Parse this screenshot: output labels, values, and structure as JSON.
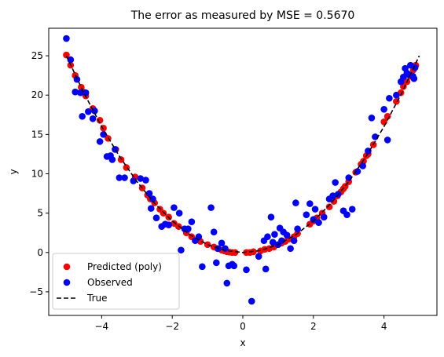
{
  "chart_data": {
    "type": "scatter",
    "title": "The error as measured by MSE = 0.5670",
    "xlabel": "x",
    "ylabel": "y",
    "xlim": [
      -5.5,
      5.5
    ],
    "ylim": [
      -8,
      28.5
    ],
    "xticks": [
      -4,
      -2,
      0,
      2,
      4
    ],
    "yticks": [
      -5,
      0,
      5,
      10,
      15,
      20,
      25
    ],
    "grid": false,
    "legend_position": "lower-left",
    "series": [
      {
        "name": "Predicted (poly)",
        "kind": "scatter",
        "color": "#ff0000",
        "x": [
          -5.0,
          -4.88,
          -4.75,
          -4.58,
          -4.52,
          -4.45,
          -4.25,
          -4.05,
          -3.95,
          -3.82,
          -3.6,
          -3.45,
          -3.3,
          -3.05,
          -2.85,
          -2.7,
          -2.62,
          -2.5,
          -2.35,
          -2.25,
          -2.1,
          -1.95,
          -1.82,
          -1.6,
          -1.45,
          -1.2,
          -1.0,
          -0.82,
          -0.72,
          -0.6,
          -0.52,
          -0.45,
          -0.38,
          -0.3,
          -0.22,
          0.1,
          0.2,
          0.3,
          0.5,
          0.62,
          0.75,
          0.88,
          1.0,
          1.1,
          1.2,
          1.3,
          1.45,
          1.55,
          1.9,
          2.0,
          2.1,
          2.25,
          2.45,
          2.58,
          2.68,
          2.78,
          2.85,
          2.9,
          3.0,
          3.2,
          3.35,
          3.42,
          3.5,
          3.55,
          3.7,
          4.0,
          4.1,
          4.35,
          4.48,
          4.55,
          4.65,
          4.75,
          4.83,
          4.9
        ],
        "y": [
          25.1,
          23.8,
          22.5,
          21.0,
          20.4,
          19.9,
          18.3,
          16.8,
          15.8,
          14.5,
          13.1,
          11.8,
          10.8,
          9.6,
          8.2,
          7.3,
          6.8,
          6.3,
          5.5,
          5.0,
          4.5,
          3.7,
          3.3,
          2.5,
          2.0,
          1.4,
          1.0,
          0.7,
          0.5,
          0.3,
          0.2,
          0.1,
          0.05,
          0.0,
          0.0,
          0.0,
          0.0,
          0.1,
          0.2,
          0.4,
          0.5,
          0.7,
          1.0,
          1.2,
          1.4,
          1.7,
          2.0,
          2.4,
          3.6,
          4.0,
          4.4,
          5.0,
          5.8,
          6.5,
          7.2,
          7.7,
          8.1,
          8.4,
          9.0,
          10.2,
          11.2,
          11.6,
          12.3,
          12.5,
          13.7,
          16.6,
          17.3,
          19.2,
          20.3,
          21.1,
          21.7,
          22.4,
          23.2,
          23.8
        ]
      },
      {
        "name": "Observed",
        "kind": "scatter",
        "color": "#0000ff",
        "x": [
          -5.0,
          -4.88,
          -4.75,
          -4.7,
          -4.6,
          -4.55,
          -4.45,
          -4.38,
          -4.25,
          -4.2,
          -4.05,
          -3.95,
          -3.85,
          -3.75,
          -3.7,
          -3.62,
          -3.5,
          -3.35,
          -3.1,
          -2.9,
          -2.75,
          -2.65,
          -2.6,
          -2.55,
          -2.45,
          -2.3,
          -2.2,
          -2.1,
          -1.95,
          -1.8,
          -1.75,
          -1.65,
          -1.55,
          -1.45,
          -1.35,
          -1.25,
          -1.15,
          -0.9,
          -0.82,
          -0.75,
          -0.7,
          -0.6,
          -0.5,
          -0.45,
          -0.4,
          -0.3,
          -0.25,
          0.1,
          0.25,
          0.45,
          0.6,
          0.65,
          0.7,
          0.8,
          0.85,
          0.9,
          1.0,
          1.05,
          1.1,
          1.15,
          1.25,
          1.35,
          1.45,
          1.5,
          1.55,
          1.8,
          1.9,
          2.0,
          2.05,
          2.15,
          2.3,
          2.45,
          2.55,
          2.62,
          2.7,
          2.85,
          2.95,
          3.0,
          3.1,
          3.25,
          3.4,
          3.55,
          3.65,
          3.75,
          4.0,
          4.1,
          4.15,
          4.35,
          4.48,
          4.55,
          4.6,
          4.65,
          4.7,
          4.75,
          4.82,
          4.85,
          4.88
        ],
        "y": [
          27.2,
          24.5,
          20.4,
          22.0,
          20.3,
          17.3,
          20.3,
          17.9,
          17.0,
          18.0,
          14.1,
          15.0,
          12.2,
          12.3,
          11.8,
          13.1,
          9.5,
          9.5,
          9.1,
          9.4,
          9.2,
          7.5,
          5.6,
          6.8,
          4.4,
          3.3,
          3.6,
          3.5,
          5.7,
          5.0,
          0.3,
          3.0,
          3.0,
          3.9,
          1.5,
          2.0,
          -1.8,
          5.7,
          2.6,
          -1.3,
          0.5,
          1.2,
          0.5,
          -3.9,
          -1.7,
          -1.5,
          -1.7,
          -2.2,
          -6.2,
          -0.5,
          1.5,
          -2.1,
          2.0,
          4.5,
          1.3,
          2.3,
          1.0,
          3.1,
          1.5,
          2.6,
          2.2,
          0.5,
          1.5,
          6.3,
          3.0,
          4.8,
          6.2,
          4.2,
          5.5,
          3.8,
          4.5,
          6.8,
          7.2,
          8.9,
          7.4,
          5.3,
          4.8,
          9.5,
          5.5,
          10.3,
          11.0,
          12.9,
          17.1,
          14.7,
          18.2,
          14.3,
          19.6,
          20.0,
          21.7,
          22.3,
          23.4,
          22.8,
          22.6,
          23.8,
          22.4,
          22.1,
          23.5
        ]
      },
      {
        "name": "True",
        "kind": "line",
        "style": "dashed",
        "color": "#000000",
        "x": [
          -5.0,
          -4.5,
          -4.0,
          -3.5,
          -3.0,
          -2.5,
          -2.0,
          -1.5,
          -1.0,
          -0.5,
          0.0,
          0.5,
          1.0,
          1.5,
          2.0,
          2.5,
          3.0,
          3.5,
          4.0,
          4.5,
          5.0
        ],
        "y": [
          25.0,
          20.25,
          16.0,
          12.25,
          9.0,
          6.25,
          4.0,
          2.25,
          1.0,
          0.25,
          0.0,
          0.25,
          1.0,
          2.25,
          4.0,
          6.25,
          9.0,
          12.25,
          16.0,
          20.25,
          25.0
        ]
      }
    ]
  }
}
